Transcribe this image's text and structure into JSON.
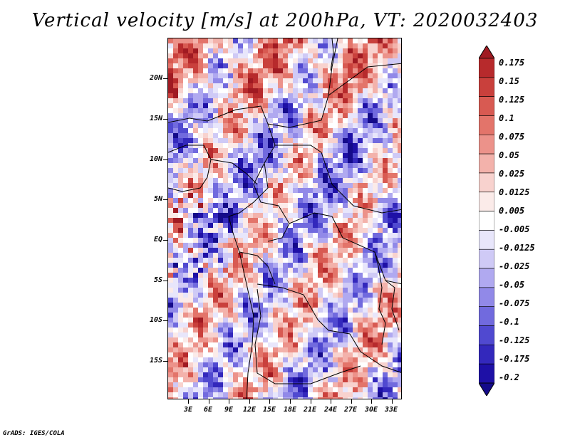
{
  "title": "Vertical velocity [m/s] at 200hPa, VT: 2020032403",
  "footer": "GrADS: IGES/COLA",
  "map": {
    "lat_ticks": [
      "20N",
      "15N",
      "10N",
      "5N",
      "EQ",
      "5S",
      "10S",
      "15S"
    ],
    "lon_ticks": [
      "3E",
      "6E",
      "9E",
      "12E",
      "15E",
      "18E",
      "21E",
      "24E",
      "27E",
      "30E",
      "33E"
    ],
    "field": "vertical velocity",
    "level": "200hPa"
  },
  "colorbar": {
    "labels": [
      "0.175",
      "0.15",
      "0.125",
      "0.1",
      "0.075",
      "0.05",
      "0.025",
      "0.0125",
      "0.005",
      "-0.005",
      "-0.0125",
      "-0.025",
      "-0.05",
      "-0.075",
      "-0.1",
      "-0.125",
      "-0.175",
      "-0.2"
    ],
    "colors": [
      "#a01a22",
      "#b72a2c",
      "#c9403c",
      "#d85a52",
      "#e3746a",
      "#ec928a",
      "#f3b2ab",
      "#f8d2ce",
      "#fbebe9",
      "#ffffff",
      "#e8e6fb",
      "#cfcaf6",
      "#b0a9f0",
      "#9189e8",
      "#716ade",
      "#5049d0",
      "#3328bc",
      "#1e10a6",
      "#140a8a"
    ]
  }
}
